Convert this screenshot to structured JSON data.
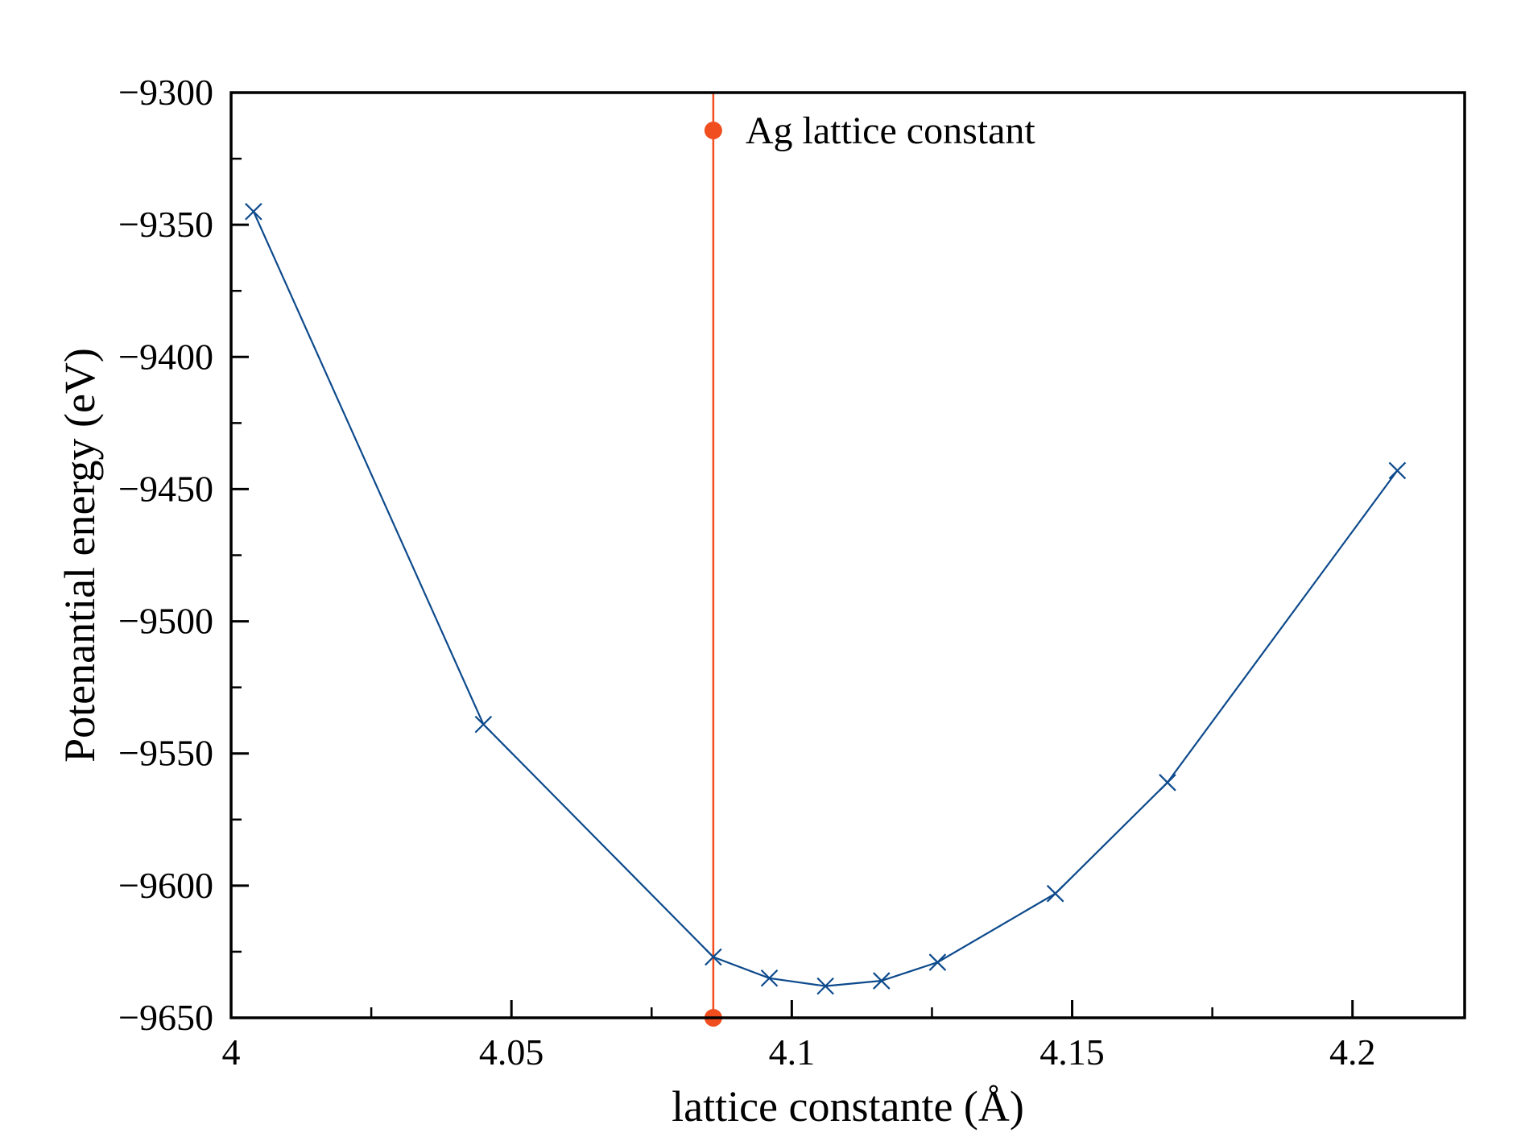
{
  "chart_data": {
    "type": "line",
    "title": "",
    "xlabel": "lattice constante (Å)",
    "ylabel": "Potenantial energy (eV)",
    "xlim": [
      4.0,
      4.22
    ],
    "ylim": [
      -9650,
      -9300
    ],
    "x_major_ticks": [
      4,
      4.05,
      4.1,
      4.15,
      4.2
    ],
    "x_tick_labels": [
      "4",
      "4.05",
      "4.1",
      "4.15",
      "4.2"
    ],
    "x_minor_ticks": [
      4.025,
      4.075,
      4.125,
      4.175
    ],
    "y_major_ticks": [
      -9650,
      -9600,
      -9550,
      -9500,
      -9450,
      -9400,
      -9350,
      -9300
    ],
    "y_tick_labels": [
      "−9650",
      "−9600",
      "−9550",
      "−9500",
      "−9450",
      "−9400",
      "−9350",
      "−9300"
    ],
    "y_minor_ticks": [
      -9625,
      -9575,
      -9525,
      -9475,
      -9425,
      -9375,
      -9325
    ],
    "grid": false,
    "series": [
      {
        "name": "",
        "color": "#0d4a8c",
        "marker": "x",
        "x": [
          4.004,
          4.045,
          4.086,
          4.096,
          4.106,
          4.116,
          4.126,
          4.147,
          4.167,
          4.208
        ],
        "y": [
          -9345,
          -9539,
          -9627,
          -9635,
          -9638,
          -9636,
          -9629,
          -9603,
          -9561,
          -9443
        ]
      }
    ],
    "reference": {
      "name": "Ag lattice constant",
      "x": 4.086,
      "color": "#f04e1f",
      "marker": "o"
    },
    "legend_placement": "top-center"
  }
}
